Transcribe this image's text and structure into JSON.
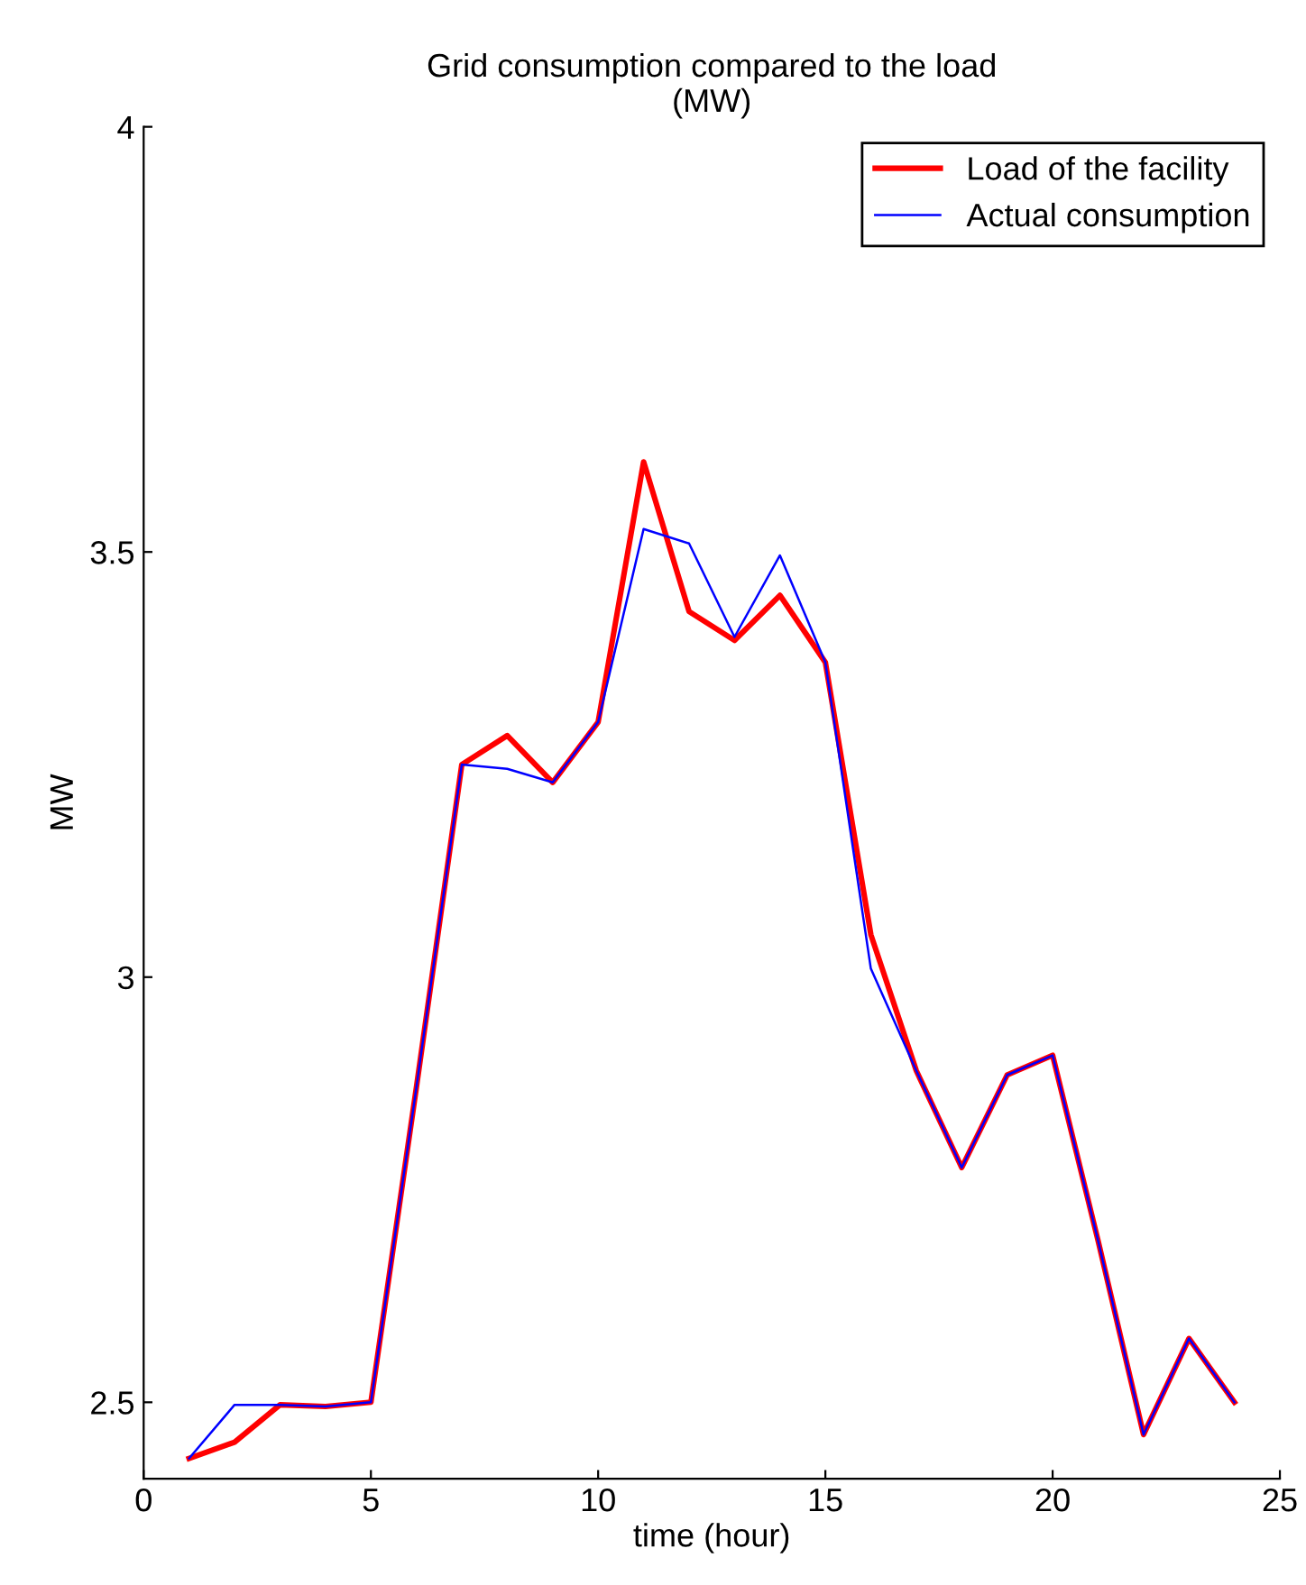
{
  "chart_data": {
    "type": "line",
    "title": "Grid consumption compared to the load\n(MW)",
    "xlabel": "time (hour)",
    "ylabel": "MW",
    "x": [
      1,
      2,
      3,
      4,
      5,
      6,
      7,
      8,
      9,
      10,
      11,
      12,
      13,
      14,
      15,
      16,
      17,
      18,
      19,
      20,
      21,
      22,
      23,
      24
    ],
    "series": [
      {
        "name": "Load of the facility",
        "color": "#ff0000",
        "values": [
          2.434,
          2.453,
          2.497,
          2.495,
          2.5,
          2.87,
          3.25,
          3.284,
          3.229,
          3.3,
          3.606,
          3.43,
          3.396,
          3.449,
          3.37,
          3.05,
          2.89,
          2.776,
          2.885,
          2.908,
          2.69,
          2.462,
          2.575,
          2.5
        ]
      },
      {
        "name": "Actual consumption",
        "color": "#0000ff",
        "values": [
          2.434,
          2.497,
          2.497,
          2.495,
          2.5,
          2.87,
          3.25,
          3.245,
          3.229,
          3.3,
          3.527,
          3.51,
          3.4,
          3.496,
          3.37,
          3.01,
          2.89,
          2.776,
          2.885,
          2.908,
          2.69,
          2.462,
          2.575,
          2.5
        ]
      }
    ],
    "xlim": [
      0,
      25
    ],
    "xticks": [
      0,
      5,
      10,
      15,
      20,
      25
    ],
    "ylim": [
      2.41,
      4
    ],
    "yticks": [
      2.5,
      3,
      3.5,
      4
    ],
    "grid": false,
    "legend": "top right",
    "marker": "none",
    "line_style": "solid"
  }
}
